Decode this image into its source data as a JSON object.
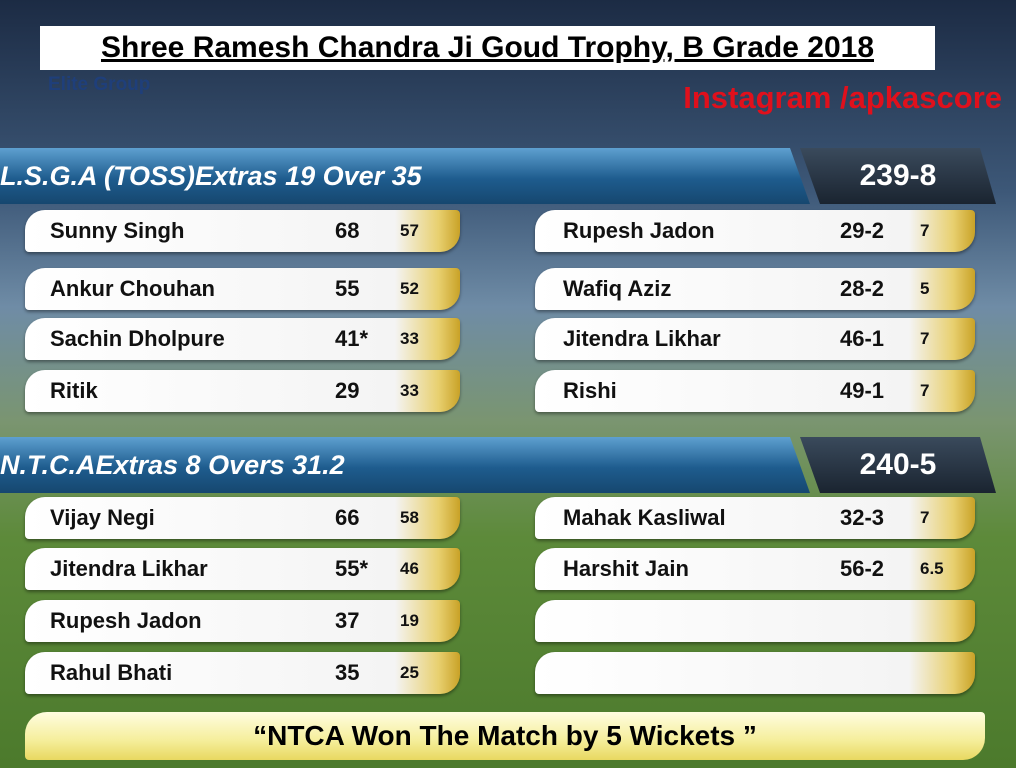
{
  "header": {
    "title": "Shree Ramesh Chandra Ji Goud Trophy, B Grade 2018",
    "subtitle": "Elite Group",
    "social": "Instagram /apkascore"
  },
  "innings": [
    {
      "team": "L.S.G.A (TOSS)",
      "extras": "Extras 19 Over 35",
      "score": "239-8",
      "batting": [
        {
          "name": "Sunny Singh",
          "runs": "68",
          "balls": "57"
        },
        {
          "name": "Ankur Chouhan",
          "runs": "55",
          "balls": "52"
        },
        {
          "name": "Sachin Dholpure",
          "runs": "41*",
          "balls": "33"
        },
        {
          "name": "Ritik",
          "runs": "29",
          "balls": "33"
        }
      ],
      "bowling": [
        {
          "name": "Rupesh Jadon",
          "figures": "29-2",
          "overs": "7"
        },
        {
          "name": "Wafiq Aziz",
          "figures": "28-2",
          "overs": "5"
        },
        {
          "name": "Jitendra Likhar",
          "figures": "46-1",
          "overs": "7"
        },
        {
          "name": "Rishi",
          "figures": "49-1",
          "overs": "7"
        }
      ]
    },
    {
      "team": "N.T.C.A",
      "extras": "Extras 8 Overs 31.2",
      "score": "240-5",
      "batting": [
        {
          "name": "Vijay Negi",
          "runs": "66",
          "balls": "58"
        },
        {
          "name": "Jitendra Likhar",
          "runs": "55*",
          "balls": "46"
        },
        {
          "name": "Rupesh Jadon",
          "runs": "37",
          "balls": "19"
        },
        {
          "name": "Rahul Bhati",
          "runs": "35",
          "balls": "25"
        }
      ],
      "bowling": [
        {
          "name": "Mahak Kasliwal",
          "figures": "32-3",
          "overs": "7"
        },
        {
          "name": "Harshit Jain",
          "figures": "56-2",
          "overs": "6.5"
        }
      ]
    }
  ],
  "result": "“NTCA Won The Match by 5 Wickets ”"
}
